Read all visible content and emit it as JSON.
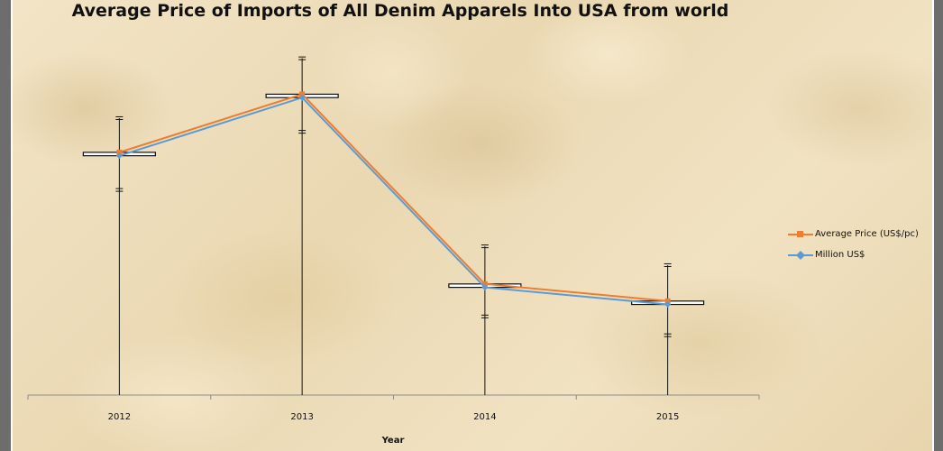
{
  "chart_data": {
    "type": "line",
    "title": "Average Price of Imports of All Denim Apparels Into USA from world",
    "xlabel": "Year",
    "ylabel": "",
    "categories": [
      "2012",
      "2013",
      "2014",
      "2015"
    ],
    "series": [
      {
        "name": "Average Price (US$/pc)",
        "values": [
          7.1,
          8.8,
          3.25,
          2.75
        ],
        "color": "#ed7d31",
        "marker": "square"
      },
      {
        "name": "Million US$",
        "values": [
          7.0,
          8.7,
          3.15,
          2.65
        ],
        "color": "#5b9bd5",
        "marker": "diamond"
      }
    ],
    "error_bars": {
      "upper": [
        8.1,
        9.85,
        4.35,
        3.8
      ],
      "lower": [
        6.0,
        7.7,
        2.3,
        1.75
      ],
      "high_low_bottom": 0
    },
    "ylim": [
      0,
      10.5
    ],
    "grid": false,
    "legend_position": "right",
    "colors": {
      "drop_line": "#111111",
      "axis": "#8c8c8c"
    }
  }
}
